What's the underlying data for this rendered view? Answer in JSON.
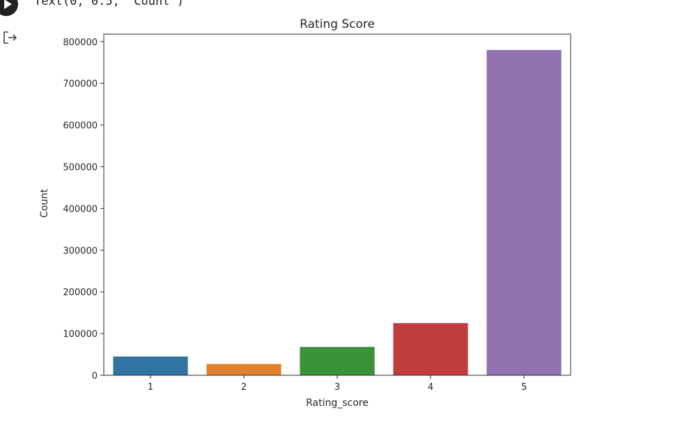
{
  "cell": {
    "output_text": "Text(0, 0.5, 'Count')"
  },
  "icons": {
    "run": "play-circle-icon",
    "output": "output-redirect-icon"
  },
  "chart_data": {
    "type": "bar",
    "title": "Rating Score",
    "xlabel": "Rating_score",
    "ylabel": "Count",
    "categories": [
      "1",
      "2",
      "3",
      "4",
      "5"
    ],
    "values": [
      45000,
      27000,
      68000,
      125000,
      780000
    ],
    "colors": [
      "#3274a1",
      "#e1812c",
      "#3a923a",
      "#c03d3e",
      "#9372b2"
    ],
    "ylim": [
      0,
      818000
    ],
    "yticks": [
      0,
      100000,
      200000,
      300000,
      400000,
      500000,
      600000,
      700000,
      800000
    ],
    "ytick_labels": [
      "0",
      "100000",
      "200000",
      "300000",
      "400000",
      "500000",
      "600000",
      "700000",
      "800000"
    ],
    "grid": false,
    "legend": "none"
  }
}
